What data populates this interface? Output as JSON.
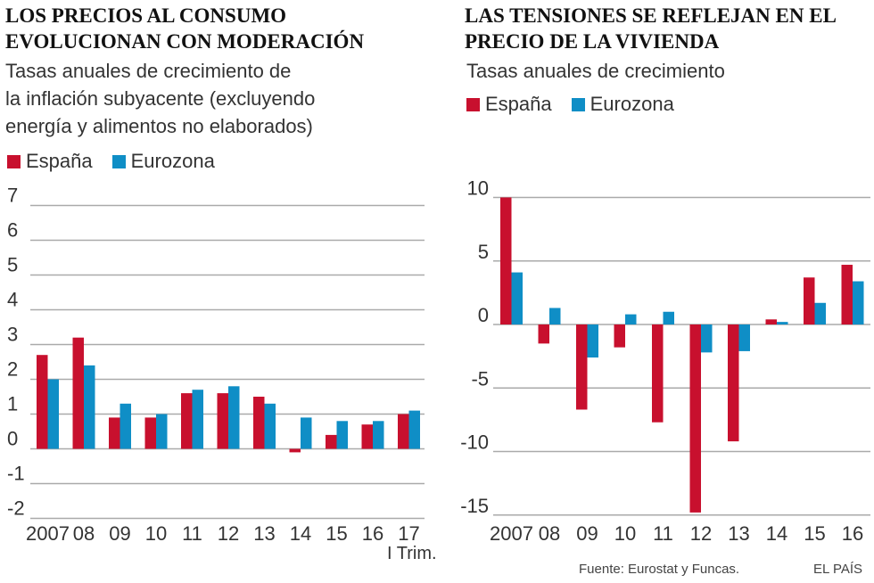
{
  "colors": {
    "spain": "#c8102e",
    "eurozone": "#0f8ec6",
    "grid": "#aaaaaa",
    "text": "#333333"
  },
  "legend": {
    "spain": "España",
    "eurozone": "Eurozona"
  },
  "left": {
    "title_line1": "LOS PRECIOS AL CONSUMO",
    "title_line2": "EVOLUCIONAN CON MODERACIÓN",
    "subtitle_line1": "Tasas anuales de crecimiento de",
    "subtitle_line2": "la inflación subyacente (excluyendo",
    "subtitle_line3": "energía y alimentos no elaborados)",
    "note": "I Trim."
  },
  "right": {
    "title_line1": "LAS TENSIONES SE REFLEJAN EN EL",
    "title_line2": "PRECIO DE LA VIVIENDA",
    "subtitle": "Tasas anuales de crecimiento"
  },
  "footer": {
    "source": "Fuente: Eurostat y Funcas.",
    "brand": "EL PAÍS"
  },
  "chart_data": [
    {
      "type": "bar",
      "title": "LOS PRECIOS AL CONSUMO EVOLUCIONAN CON MODERACIÓN",
      "subtitle": "Tasas anuales de crecimiento de la inflación subyacente (excluyendo energía y alimentos no elaborados)",
      "categories": [
        "2007",
        "08",
        "09",
        "10",
        "11",
        "12",
        "13",
        "14",
        "15",
        "16",
        "17"
      ],
      "series": [
        {
          "name": "España",
          "values": [
            2.7,
            3.2,
            0.9,
            0.9,
            1.6,
            1.6,
            1.5,
            -0.1,
            0.4,
            0.7,
            1.0
          ]
        },
        {
          "name": "Eurozona",
          "values": [
            2.0,
            2.4,
            1.3,
            1.0,
            1.7,
            1.8,
            1.3,
            0.9,
            0.8,
            0.8,
            1.1
          ]
        }
      ],
      "yticks": [
        7,
        6,
        5,
        4,
        3,
        2,
        1,
        0,
        -1,
        -2
      ],
      "ylim": [
        -2,
        7
      ],
      "xlabel": "",
      "ylabel": ""
    },
    {
      "type": "bar",
      "title": "LAS TENSIONES SE REFLEJAN EN EL PRECIO DE LA VIVIENDA",
      "subtitle": "Tasas anuales de crecimiento",
      "categories": [
        "2007",
        "08",
        "09",
        "10",
        "11",
        "12",
        "13",
        "14",
        "15",
        "16"
      ],
      "series": [
        {
          "name": "España",
          "values": [
            10.0,
            -1.5,
            -6.7,
            -1.8,
            -7.7,
            -14.8,
            -9.2,
            0.4,
            3.7,
            4.7
          ]
        },
        {
          "name": "Eurozona",
          "values": [
            4.1,
            1.3,
            -2.6,
            0.8,
            1.0,
            -2.2,
            -2.1,
            0.2,
            1.7,
            3.4
          ]
        }
      ],
      "yticks": [
        10,
        5,
        0,
        -5,
        -10,
        -15
      ],
      "ylim": [
        -15,
        10
      ],
      "xlabel": "",
      "ylabel": ""
    }
  ]
}
